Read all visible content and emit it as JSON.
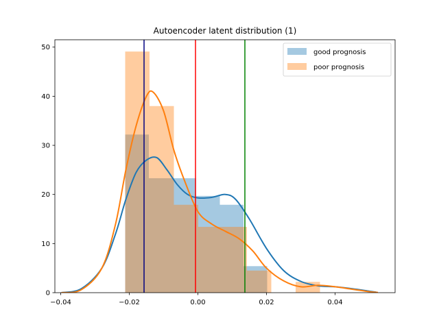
{
  "chart_data": {
    "type": "histogram",
    "title": "Autoencoder latent distribution (1)",
    "xlabel": "",
    "ylabel": "",
    "xlim": [
      -0.0417,
      0.0575
    ],
    "ylim": [
      0,
      51.5
    ],
    "xticks": [
      -0.04,
      -0.02,
      0.0,
      0.02,
      0.04
    ],
    "xtick_labels": [
      "−0.04",
      "−0.02",
      "0.00",
      "0.02",
      "0.04"
    ],
    "yticks": [
      0,
      10,
      20,
      30,
      40,
      50
    ],
    "ytick_labels": [
      "0",
      "10",
      "20",
      "30",
      "40",
      "50"
    ],
    "grid": false,
    "legend_position": "top-right",
    "series": [
      {
        "name": "good prognosis",
        "color": "#1f77b4",
        "bar_alpha": 0.4,
        "bin_edges": [
          -0.0212,
          -0.0143,
          -0.0074,
          -0.0005,
          0.0064,
          0.0133,
          0.0202,
          0.0271
        ],
        "counts": [
          32.2,
          23.3,
          23.3,
          19.7,
          17.9,
          5.4,
          0
        ]
      },
      {
        "name": "poor prognosis",
        "color": "#ff7f0e",
        "bar_alpha": 0.4,
        "bin_edges": [
          -0.0212,
          -0.0141,
          -0.007,
          0.0001,
          0.0072,
          0.0143,
          0.0214,
          0.0285,
          0.0356
        ],
        "counts": [
          49.1,
          38.0,
          17.9,
          13.4,
          13.4,
          4.5,
          0,
          2.2
        ]
      }
    ],
    "kde": [
      {
        "name": "good prognosis",
        "color": "#1f77b4",
        "points": [
          [
            -0.0398,
            0
          ],
          [
            -0.034,
            0.8
          ],
          [
            -0.028,
            5
          ],
          [
            -0.024,
            12
          ],
          [
            -0.021,
            19
          ],
          [
            -0.018,
            24.5
          ],
          [
            -0.015,
            27
          ],
          [
            -0.012,
            27.5
          ],
          [
            -0.009,
            25
          ],
          [
            -0.006,
            22
          ],
          [
            -0.003,
            20
          ],
          [
            0.0,
            19.3
          ],
          [
            0.004,
            19.4
          ],
          [
            0.008,
            20
          ],
          [
            0.011,
            19
          ],
          [
            0.015,
            15
          ],
          [
            0.02,
            9
          ],
          [
            0.025,
            4.5
          ],
          [
            0.03,
            2.3
          ],
          [
            0.035,
            1.4
          ],
          [
            0.04,
            1.2
          ],
          [
            0.045,
            0.8
          ],
          [
            0.05,
            0.3
          ],
          [
            0.052,
            0.1
          ]
        ]
      },
      {
        "name": "poor prognosis",
        "color": "#ff7f0e",
        "points": [
          [
            -0.0398,
            0
          ],
          [
            -0.034,
            0.6
          ],
          [
            -0.028,
            5
          ],
          [
            -0.024,
            14
          ],
          [
            -0.021,
            25
          ],
          [
            -0.018,
            34
          ],
          [
            -0.015,
            40
          ],
          [
            -0.013,
            40.8
          ],
          [
            -0.01,
            37
          ],
          [
            -0.007,
            29
          ],
          [
            -0.004,
            23
          ],
          [
            0.0,
            16.5
          ],
          [
            0.004,
            14
          ],
          [
            0.008,
            12.5
          ],
          [
            0.012,
            11
          ],
          [
            0.016,
            8.5
          ],
          [
            0.02,
            5
          ],
          [
            0.025,
            2.4
          ],
          [
            0.03,
            1.2
          ],
          [
            0.035,
            1.5
          ],
          [
            0.04,
            1.2
          ],
          [
            0.045,
            0.7
          ],
          [
            0.05,
            0.2
          ],
          [
            0.0525,
            0.05
          ]
        ]
      }
    ],
    "vlines": [
      {
        "x": -0.0157,
        "color": "#000080"
      },
      {
        "x": -0.0007,
        "color": "#ff0000"
      },
      {
        "x": 0.0137,
        "color": "#008000"
      }
    ]
  }
}
